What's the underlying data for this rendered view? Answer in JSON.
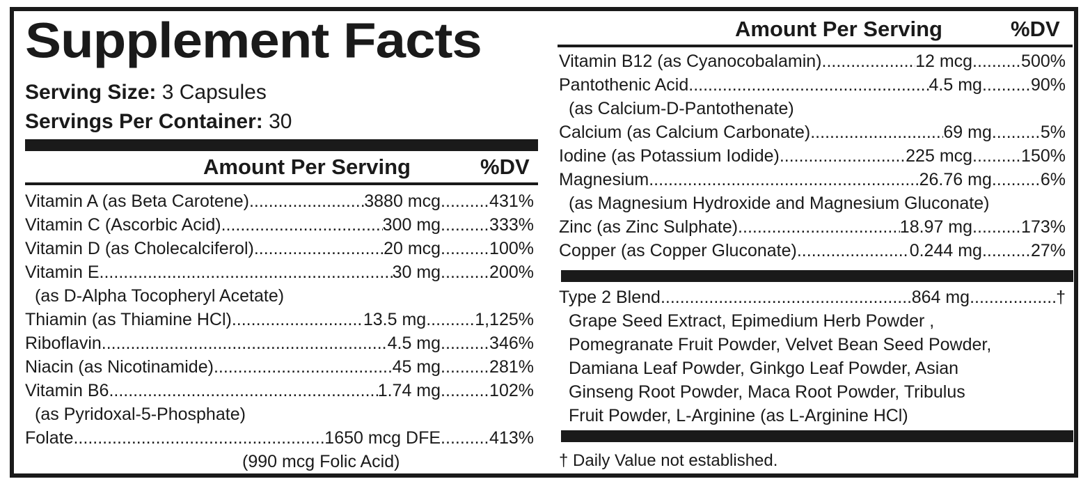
{
  "panel": {
    "title": "Supplement Facts",
    "serving_size_label": "Serving Size:",
    "serving_size_value": "3 Capsules",
    "servings_per_container_label": "Servings Per Container:",
    "servings_per_container_value": "30"
  },
  "columns": {
    "amount_header": "Amount Per Serving",
    "dv_header": "%DV"
  },
  "left_nutrients": [
    {
      "name": "Vitamin A (as Beta Carotene)",
      "amount": "3880 mcg",
      "dv": "431%"
    },
    {
      "name": "Vitamin C (Ascorbic Acid)",
      "amount": "300 mg",
      "dv": "333%"
    },
    {
      "name": "Vitamin D (as Cholecalciferol)",
      "amount": "20 mcg",
      "dv": "100%"
    },
    {
      "name": "Vitamin E",
      "amount": "30 mg",
      "dv": "200%",
      "sub": "(as D-Alpha Tocopheryl Acetate)"
    },
    {
      "name": "Thiamin (as Thiamine HCl)",
      "amount": "13.5 mg",
      "dv": "1,125%"
    },
    {
      "name": "Riboflavin",
      "amount": "4.5 mg",
      "dv": "346%"
    },
    {
      "name": "Niacin (as Nicotinamide)",
      "amount": "45 mg",
      "dv": "281%"
    },
    {
      "name": "Vitamin B6",
      "amount": "1.74 mg",
      "dv": "102%",
      "sub": "(as Pyridoxal-5-Phosphate)"
    },
    {
      "name": "Folate",
      "amount": "1650 mcg DFE",
      "dv": "413%",
      "sub": "(990 mcg Folic Acid)"
    }
  ],
  "right_nutrients": [
    {
      "name": "Vitamin B12 (as Cyanocobalamin)",
      "amount": "12 mcg",
      "dv": "500%"
    },
    {
      "name": "Pantothenic Acid",
      "amount": "4.5 mg",
      "dv": "90%",
      "sub": "(as Calcium-D-Pantothenate)"
    },
    {
      "name": "Calcium (as Calcium Carbonate)",
      "amount": "69 mg",
      "dv": "5%"
    },
    {
      "name": "Iodine (as Potassium Iodide)",
      "amount": "225 mcg",
      "dv": "150%"
    },
    {
      "name": "Magnesium",
      "amount": "26.76 mg",
      "dv": "6%",
      "sub": "(as Magnesium Hydroxide and Magnesium Gluconate)"
    },
    {
      "name": "Zinc (as Zinc Sulphate)",
      "amount": "18.97 mg",
      "dv": "173%"
    },
    {
      "name": "Copper (as Copper Gluconate)",
      "amount": "0.244 mg",
      "dv": "27%"
    }
  ],
  "blend": {
    "name": "Type 2 Blend",
    "amount": "864 mg",
    "dv": "†",
    "ingredients_lines": [
      "Grape Seed Extract, Epimedium Herb Powder ,",
      "Pomegranate Fruit Powder, Velvet Bean Seed Powder,",
      "Damiana Leaf Powder, Ginkgo Leaf Powder, Asian",
      "Ginseng Root Powder, Maca Root Powder, Tribulus",
      "Fruit Powder, L-Arginine (as L-Arginine HCl)"
    ]
  },
  "footnote": "† Daily Value not established.",
  "colors": {
    "ink": "#1a1a1a",
    "background": "#ffffff"
  }
}
